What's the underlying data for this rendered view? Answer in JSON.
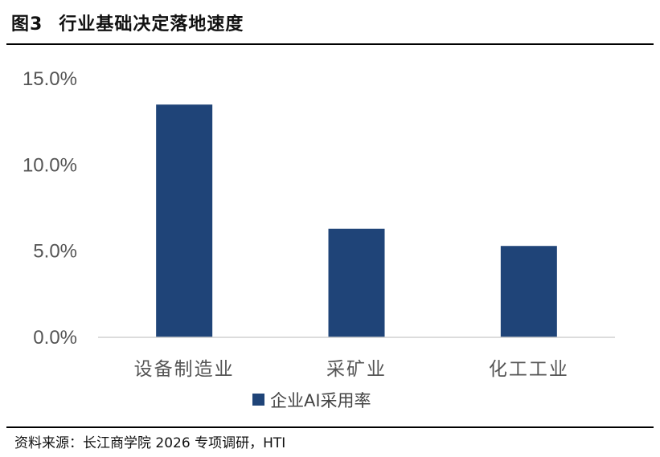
{
  "figure": {
    "number": "图3",
    "title": "行业基础决定落地速度",
    "source": "资料来源：长江商学院 2026 专项调研，HTI"
  },
  "chart_data": {
    "type": "bar",
    "categories": [
      "设备制造业",
      "采矿业",
      "化工工业"
    ],
    "series": [
      {
        "name": "企业AI采用率",
        "values": [
          13.5,
          6.3,
          5.3
        ],
        "color": "#1f4478"
      }
    ],
    "yticks": [
      "0.0%",
      "5.0%",
      "10.0%",
      "15.0%"
    ],
    "ylim": [
      0,
      15
    ],
    "grid": false,
    "legend": "bottom"
  }
}
